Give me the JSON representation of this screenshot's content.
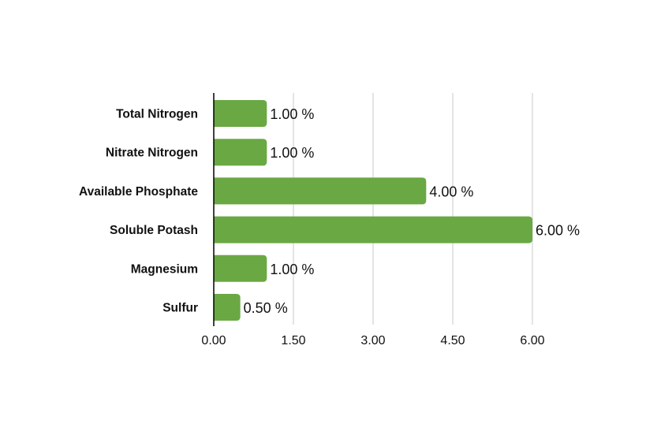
{
  "chart_data": {
    "type": "bar",
    "orientation": "horizontal",
    "categories": [
      "Total Nitrogen",
      "Nitrate Nitrogen",
      "Available Phosphate",
      "Soluble Potash",
      "Magnesium",
      "Sulfur"
    ],
    "values": [
      1.0,
      1.0,
      4.0,
      6.0,
      1.0,
      0.5
    ],
    "data_labels": [
      "1.00 %",
      "1.00 %",
      "4.00 %",
      "6.00 %",
      "1.00 %",
      "0.50 %"
    ],
    "x_ticks": [
      "0.00",
      "1.50",
      "3.00",
      "4.50",
      "6.00"
    ],
    "xlim": [
      0,
      6.0
    ],
    "title": "",
    "xlabel": "",
    "ylabel": "",
    "grid": "vertical",
    "legend": "none",
    "bar_color": "#6aa843",
    "grid_color": "#c8c8c8",
    "axis_color": "#000000"
  }
}
